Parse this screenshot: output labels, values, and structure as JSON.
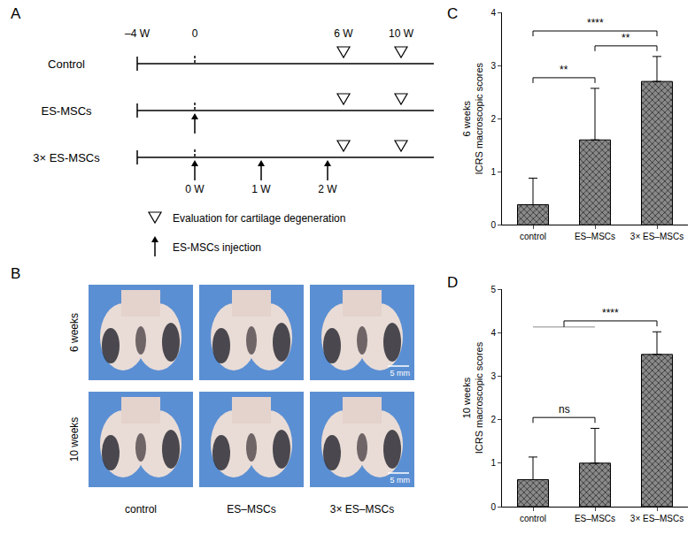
{
  "panel_labels": [
    "A",
    "B",
    "C",
    "D"
  ],
  "timeline": {
    "time_points": [
      "–4 W",
      "0",
      "6 W",
      "10 W"
    ],
    "groups": [
      {
        "name": "Control",
        "injections": 0
      },
      {
        "name": "ES-MSCs",
        "injections": 1
      },
      {
        "name": "3× ES-MSCs",
        "injections": 3,
        "injection_labels": [
          "0 W",
          "1 W",
          "2 W"
        ]
      }
    ],
    "evaluations_at": [
      "6 W",
      "10 W"
    ],
    "legend": {
      "evaluation": "Evaluation for cartilage degeneration",
      "injection": "ES-MSCs injection"
    }
  },
  "photos": {
    "rows": [
      "6 weeks",
      "10 weeks"
    ],
    "columns": [
      "control",
      "ES–MSCs",
      "3× ES–MSCs"
    ],
    "scale_bar": "5 mm"
  },
  "chart_data": [
    {
      "type": "bar",
      "y_label": [
        "6 weeks",
        "ICRS macroscopic scores"
      ],
      "categories": [
        "control",
        "ES–MSCs",
        "3× ES–MSCs"
      ],
      "values": [
        0.38,
        1.6,
        2.7
      ],
      "error": [
        0.5,
        0.97,
        0.47
      ],
      "color": "#8a8a8a",
      "ylim": [
        0,
        4
      ],
      "yticks": [
        0,
        1,
        2,
        3,
        4
      ],
      "grid": false,
      "comparisons": [
        {
          "left": [
            "control"
          ],
          "right": [
            "ES–MSCs"
          ],
          "text": "**"
        },
        {
          "left": [
            "ES–MSCs"
          ],
          "right": [
            "3× ES–MSCs"
          ],
          "text": "**"
        },
        {
          "left": [
            "control"
          ],
          "right": [
            "3× ES–MSCs"
          ],
          "text": "****"
        }
      ]
    },
    {
      "type": "bar",
      "y_label": [
        "10 weeks",
        "ICRS macroscopic scores"
      ],
      "categories": [
        "control",
        "ES–MSCs",
        "3× ES–MSCs"
      ],
      "values": [
        0.62,
        1.0,
        3.5
      ],
      "error": [
        0.52,
        0.8,
        0.52
      ],
      "color": "#8a8a8a",
      "ylim": [
        0,
        5
      ],
      "yticks": [
        0,
        1,
        2,
        3,
        4,
        5
      ],
      "grid": false,
      "comparisons": [
        {
          "left": [
            "control"
          ],
          "right": [
            "ES–MSCs"
          ],
          "text": "ns"
        },
        {
          "left": [
            "control",
            "ES–MSCs"
          ],
          "right": [
            "3× ES–MSCs"
          ],
          "text": "****"
        }
      ]
    }
  ]
}
